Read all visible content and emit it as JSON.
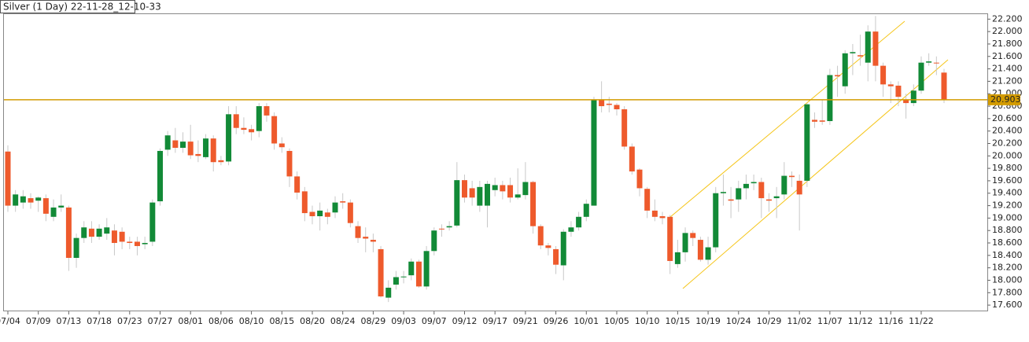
{
  "chart_data": {
    "type": "candlestick",
    "title": "Silver (1 Day) 22-11-28_12-10-33",
    "categories": [
      "07/04",
      null,
      null,
      null,
      "07/09",
      null,
      null,
      null,
      "07/13",
      null,
      null,
      null,
      "07/18",
      null,
      null,
      null,
      "07/23",
      null,
      null,
      null,
      "07/27",
      null,
      null,
      null,
      "08/01",
      null,
      null,
      null,
      "08/06",
      null,
      null,
      null,
      "08/10",
      null,
      null,
      null,
      "08/15",
      null,
      null,
      null,
      "08/20",
      null,
      null,
      null,
      "08/24",
      null,
      null,
      null,
      "08/29",
      null,
      null,
      null,
      "09/03",
      null,
      null,
      null,
      "09/07",
      null,
      null,
      null,
      "09/12",
      null,
      null,
      null,
      "09/17",
      null,
      null,
      null,
      "09/21",
      null,
      null,
      null,
      "09/26",
      null,
      null,
      null,
      "10/01",
      null,
      null,
      null,
      "10/05",
      null,
      null,
      null,
      "10/10",
      null,
      null,
      null,
      "10/15",
      null,
      null,
      null,
      "10/19",
      null,
      null,
      null,
      "10/24",
      null,
      null,
      null,
      "10/29",
      null,
      null,
      null,
      "11/02",
      null,
      null,
      null,
      "11/07",
      null,
      null,
      null,
      "11/12",
      null,
      null,
      null,
      "11/16",
      null,
      null,
      null,
      "11/22",
      null,
      null,
      null
    ],
    "open": [
      20.07,
      19.2,
      19.25,
      19.32,
      19.28,
      19.32,
      19.02,
      19.17,
      19.17,
      18.36,
      18.68,
      18.83,
      18.7,
      18.75,
      18.8,
      18.78,
      18.62,
      18.62,
      18.58,
      18.62,
      19.27,
      20.1,
      20.25,
      20.13,
      20.23,
      20.03,
      19.98,
      20.28,
      19.93,
      19.91,
      20.67,
      20.45,
      20.43,
      20.4,
      20.8,
      20.64,
      20.2,
      20.08,
      19.67,
      19.43,
      19.1,
      19.03,
      19.09,
      19.09,
      19.27,
      19.25,
      18.87,
      18.7,
      18.65,
      18.5,
      17.72,
      17.93,
      18.05,
      18.08,
      18.3,
      17.9,
      18.47,
      18.83,
      18.85,
      18.88,
      19.61,
      19.48,
      19.2,
      19.2,
      19.45,
      19.53,
      19.53,
      19.33,
      19.37,
      19.58,
      18.87,
      18.56,
      18.5,
      18.24,
      18.78,
      18.85,
      19.02,
      19.2,
      20.9,
      20.84,
      20.82,
      20.75,
      20.15,
      19.78,
      19.47,
      19.12,
      19.03,
      19.02,
      18.26,
      18.45,
      18.76,
      18.65,
      18.33,
      18.53,
      19.4,
      19.3,
      19.3,
      19.48,
      19.56,
      19.58,
      19.3,
      19.32,
      19.38,
      19.68,
      19.6,
      19.6,
      20.58,
      20.57,
      20.56,
      21.3,
      21.12,
      21.65,
      21.62,
      21.5,
      22.0,
      21.45,
      21.15,
      21.13,
      20.9,
      20.85,
      21.05,
      21.5,
      21.5,
      21.34
    ],
    "high": [
      20.17,
      19.45,
      19.45,
      19.4,
      19.35,
      19.38,
      19.3,
      19.38,
      19.2,
      18.75,
      18.95,
      18.95,
      18.9,
      19.0,
      18.9,
      18.85,
      18.7,
      18.7,
      18.7,
      19.3,
      20.12,
      20.4,
      20.45,
      20.38,
      20.5,
      20.25,
      20.35,
      20.33,
      20.0,
      20.8,
      20.8,
      20.62,
      20.5,
      20.85,
      20.85,
      20.7,
      20.3,
      20.12,
      19.75,
      19.5,
      19.2,
      19.25,
      19.15,
      19.35,
      19.4,
      19.3,
      18.95,
      18.85,
      18.75,
      18.55,
      18.0,
      18.15,
      18.15,
      18.35,
      18.33,
      18.55,
      18.85,
      18.9,
      18.95,
      19.9,
      19.7,
      19.6,
      19.6,
      19.6,
      19.65,
      19.6,
      19.65,
      19.8,
      19.9,
      19.6,
      18.9,
      18.6,
      18.55,
      18.82,
      18.95,
      19.1,
      19.3,
      20.95,
      21.2,
      20.95,
      20.85,
      20.8,
      20.2,
      19.8,
      19.5,
      19.3,
      19.1,
      19.05,
      18.65,
      18.85,
      18.8,
      18.7,
      18.7,
      19.5,
      19.7,
      19.5,
      19.6,
      19.7,
      19.7,
      19.65,
      19.4,
      19.5,
      19.9,
      19.75,
      19.7,
      20.85,
      20.7,
      20.9,
      21.4,
      21.45,
      21.7,
      21.8,
      21.95,
      22.1,
      22.25,
      21.5,
      21.2,
      21.2,
      21.0,
      21.15,
      21.6,
      21.65,
      21.6,
      21.4
    ],
    "low": [
      19.1,
      19.1,
      19.15,
      19.15,
      19.1,
      18.95,
      18.95,
      19.1,
      18.15,
      18.2,
      18.6,
      18.6,
      18.65,
      18.65,
      18.4,
      18.5,
      18.5,
      18.4,
      18.5,
      18.55,
      19.2,
      20.0,
      20.05,
      20.05,
      19.95,
      19.9,
      19.95,
      19.75,
      19.85,
      19.85,
      20.35,
      20.35,
      20.25,
      20.3,
      20.55,
      20.1,
      20.05,
      19.5,
      19.3,
      18.95,
      18.9,
      18.8,
      18.9,
      19.0,
      19.15,
      18.85,
      18.6,
      18.45,
      18.45,
      17.72,
      17.65,
      17.85,
      17.95,
      18.0,
      17.88,
      17.85,
      18.4,
      18.7,
      18.8,
      18.85,
      19.25,
      19.2,
      19.1,
      18.85,
      19.35,
      19.3,
      19.25,
      19.3,
      19.3,
      18.75,
      18.5,
      18.4,
      18.1,
      18.0,
      18.7,
      18.8,
      18.95,
      19.2,
      20.7,
      20.7,
      20.65,
      20.1,
      19.7,
      19.35,
      19.0,
      18.95,
      18.9,
      18.1,
      18.2,
      18.3,
      18.55,
      18.3,
      18.25,
      18.45,
      19.2,
      19.0,
      19.1,
      19.3,
      19.45,
      19.0,
      19.1,
      19.0,
      19.3,
      19.5,
      18.8,
      19.5,
      20.45,
      20.5,
      20.5,
      20.95,
      21.0,
      21.3,
      21.45,
      21.2,
      21.2,
      20.95,
      20.85,
      20.8,
      20.6,
      20.8,
      21.0,
      21.45,
      21.3,
      20.85
    ],
    "close": [
      19.2,
      19.38,
      19.35,
      19.25,
      19.33,
      19.07,
      19.17,
      19.2,
      18.36,
      18.68,
      18.85,
      18.7,
      18.83,
      18.85,
      18.6,
      18.62,
      18.6,
      18.55,
      18.6,
      19.25,
      20.08,
      20.33,
      20.13,
      20.23,
      20.01,
      20.0,
      20.28,
      19.9,
      19.9,
      20.67,
      20.45,
      20.42,
      20.38,
      20.8,
      20.65,
      20.2,
      20.14,
      19.67,
      19.41,
      19.08,
      19.03,
      19.12,
      19.02,
      19.25,
      19.25,
      18.92,
      18.68,
      18.67,
      18.62,
      17.74,
      17.88,
      18.05,
      18.06,
      18.3,
      17.9,
      18.47,
      18.8,
      18.82,
      18.87,
      19.61,
      19.33,
      19.33,
      19.5,
      19.55,
      19.53,
      19.43,
      19.33,
      19.38,
      19.58,
      18.87,
      18.56,
      18.52,
      18.25,
      18.78,
      18.85,
      19.02,
      19.23,
      20.9,
      20.8,
      20.82,
      20.75,
      20.15,
      19.75,
      19.48,
      19.12,
      19.02,
      19.0,
      18.31,
      18.45,
      18.76,
      18.68,
      18.33,
      18.53,
      19.4,
      19.42,
      19.28,
      19.48,
      19.55,
      19.58,
      19.32,
      19.28,
      19.35,
      19.68,
      19.66,
      19.38,
      20.83,
      20.55,
      20.55,
      21.3,
      21.28,
      21.65,
      21.67,
      21.6,
      22.0,
      21.45,
      21.15,
      21.12,
      20.95,
      20.85,
      21.05,
      21.5,
      21.52,
      21.49,
      20.9
    ],
    "up_color": "#128a37",
    "down_color": "#ee5a2c",
    "wick_color": "#c8c8c8",
    "last_price": 20.903,
    "last_price_color": "#d39b00",
    "ylim": [
      17.5,
      22.28
    ],
    "yticks": [
      {
        "value": 17.6,
        "label": "17.600"
      },
      {
        "value": 17.8,
        "label": "17.800"
      },
      {
        "value": 18.0,
        "label": "18.000"
      },
      {
        "value": 18.2,
        "label": "18.200"
      },
      {
        "value": 18.4,
        "label": "18.400"
      },
      {
        "value": 18.6,
        "label": "18.600"
      },
      {
        "value": 18.8,
        "label": "18.800"
      },
      {
        "value": 19.0,
        "label": "19.000"
      },
      {
        "value": 19.2,
        "label": "19.200"
      },
      {
        "value": 19.4,
        "label": "19.400"
      },
      {
        "value": 19.6,
        "label": "19.600"
      },
      {
        "value": 19.8,
        "label": "19.800"
      },
      {
        "value": 20.0,
        "label": "20.000"
      },
      {
        "value": 20.2,
        "label": "20.200"
      },
      {
        "value": 20.4,
        "label": "20.400"
      },
      {
        "value": 20.6,
        "label": "20.600"
      },
      {
        "value": 20.8,
        "label": "20.800"
      },
      {
        "value": 21.0,
        "label": "21.000"
      },
      {
        "value": 21.2,
        "label": "21.200"
      },
      {
        "value": 21.4,
        "label": "21.400"
      },
      {
        "value": 21.6,
        "label": "21.600"
      },
      {
        "value": 21.8,
        "label": "21.800"
      },
      {
        "value": 22.0,
        "label": "22.000"
      },
      {
        "value": 22.2,
        "label": "22.200"
      }
    ],
    "grid": false
  }
}
